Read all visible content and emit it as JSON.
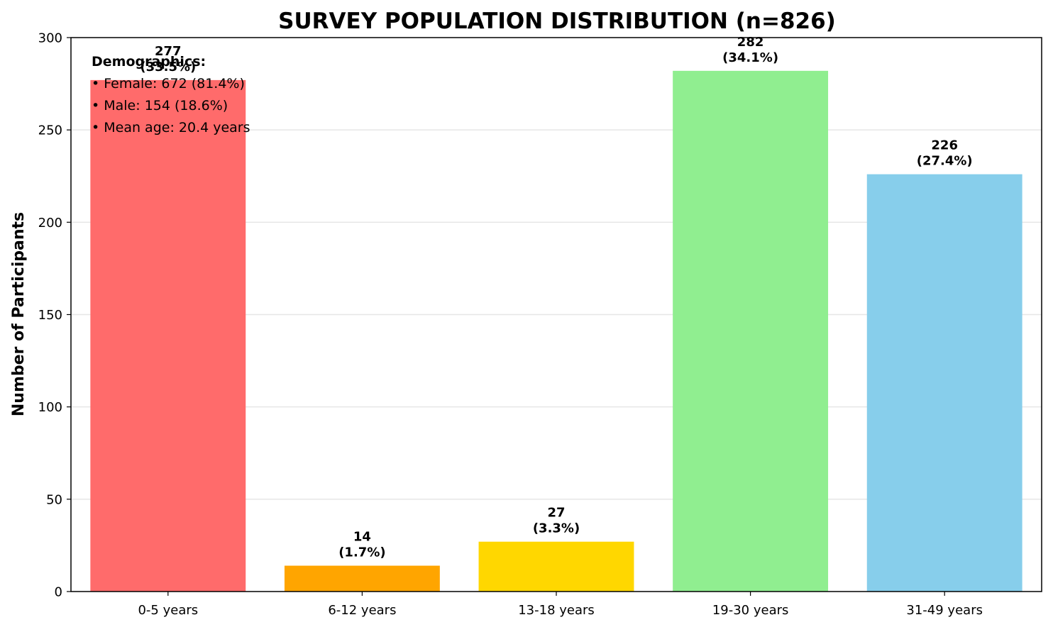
{
  "chart_data": {
    "type": "bar",
    "title": "SURVEY POPULATION DISTRIBUTION (n=826)",
    "xlabel": "",
    "ylabel": "Number of Participants",
    "categories": [
      "0-5 years",
      "6-12 years",
      "13-18 years",
      "19-30 years",
      "31-49 years"
    ],
    "values": [
      277,
      14,
      27,
      282,
      226
    ],
    "data_labels": [
      "(33.5%)",
      "(1.7%)",
      "(3.3%)",
      "(34.1%)",
      "(27.4%)"
    ],
    "colors": [
      "#ff6b6b",
      "#ffa500",
      "#ffd700",
      "#90ee90",
      "#87ceeb"
    ],
    "ylim": [
      0,
      300
    ],
    "yticks": [
      0,
      50,
      100,
      150,
      200,
      250,
      300
    ],
    "grid": "y",
    "annotation": {
      "heading": "Demographics:",
      "lines": [
        "• Female: 672 (81.4%)",
        "• Male: 154 (18.6%)",
        "• Mean age: 20.4 years"
      ],
      "placement": "top-left"
    }
  }
}
